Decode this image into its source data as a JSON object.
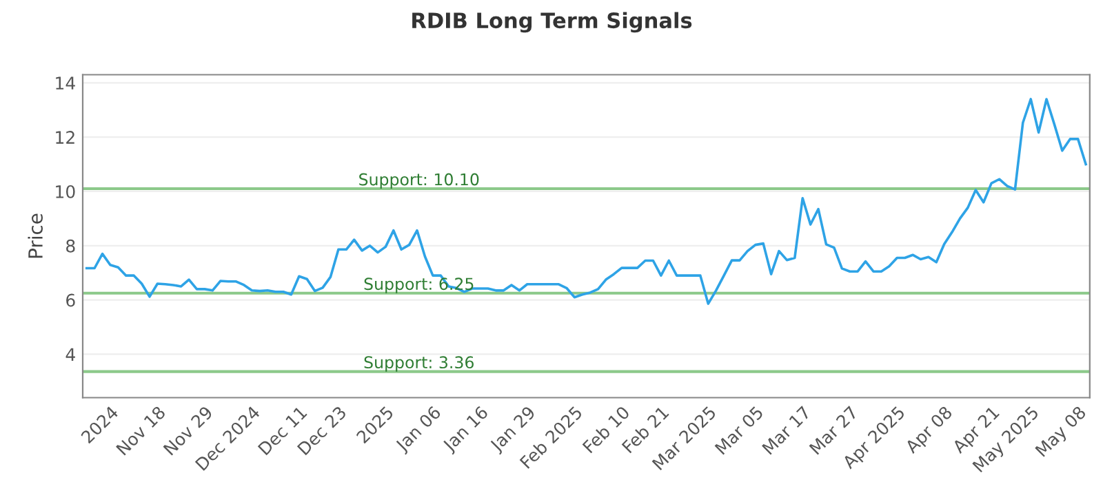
{
  "chart_data": {
    "type": "line",
    "title": "RDIB Long Term Signals",
    "ylabel": "Price",
    "categories": [
      null,
      null,
      null,
      "2024",
      null,
      null,
      null,
      null,
      null,
      "Nov 18",
      null,
      null,
      null,
      null,
      null,
      "Nov 29",
      null,
      null,
      null,
      null,
      null,
      "Dec 2024",
      null,
      null,
      null,
      null,
      null,
      "Dec 11",
      null,
      null,
      null,
      null,
      "Dec 23",
      null,
      null,
      null,
      null,
      null,
      "2025",
      null,
      null,
      null,
      null,
      null,
      "Jan 06",
      null,
      null,
      null,
      null,
      null,
      "Jan 16",
      null,
      null,
      null,
      null,
      null,
      "Jan 29",
      null,
      null,
      null,
      null,
      null,
      "Feb 2025",
      null,
      null,
      null,
      null,
      null,
      "Feb 10",
      null,
      null,
      null,
      null,
      "Feb 21",
      null,
      null,
      null,
      null,
      null,
      "Mar 2025",
      null,
      null,
      null,
      null,
      null,
      "Mar 05",
      null,
      null,
      null,
      null,
      null,
      "Mar 17",
      null,
      null,
      null,
      null,
      null,
      "Mar 27",
      null,
      null,
      null,
      null,
      null,
      "Apr 2025",
      null,
      null,
      null,
      null,
      null,
      "Apr 08",
      null,
      null,
      null,
      null,
      null,
      "Apr 21",
      null,
      null,
      null,
      null,
      "May 2025",
      null,
      null,
      null,
      null,
      null,
      "May 08",
      null
    ],
    "series": [
      {
        "color": "#2ea3e6",
        "values": [
          7.17,
          7.17,
          7.7,
          7.29,
          7.2,
          6.9,
          6.9,
          6.6,
          6.12,
          6.6,
          6.58,
          6.55,
          6.5,
          6.75,
          6.4,
          6.4,
          6.35,
          6.7,
          6.68,
          6.68,
          6.55,
          6.35,
          6.33,
          6.35,
          6.3,
          6.3,
          6.2,
          6.87,
          6.77,
          6.33,
          6.45,
          6.85,
          7.86,
          7.86,
          8.22,
          7.82,
          8.0,
          7.75,
          7.96,
          8.56,
          7.86,
          8.03,
          8.56,
          7.6,
          6.9,
          6.9,
          6.5,
          6.44,
          6.3,
          6.42,
          6.42,
          6.42,
          6.35,
          6.35,
          6.55,
          6.35,
          6.58,
          6.58,
          6.58,
          6.58,
          6.58,
          6.44,
          6.1,
          6.2,
          6.27,
          6.4,
          6.75,
          6.95,
          7.18,
          7.18,
          7.18,
          7.45,
          7.45,
          6.9,
          7.45,
          6.9,
          6.9,
          6.9,
          6.9,
          5.86,
          6.35,
          6.9,
          7.46,
          7.46,
          7.8,
          8.03,
          8.08,
          6.95,
          7.8,
          7.47,
          7.55,
          9.75,
          8.78,
          9.35,
          8.05,
          7.93,
          7.16,
          7.05,
          7.05,
          7.42,
          7.05,
          7.05,
          7.24,
          7.55,
          7.55,
          7.66,
          7.5,
          7.58,
          7.39,
          8.06,
          8.5,
          9.0,
          9.4,
          10.05,
          9.6,
          10.3,
          10.45,
          10.2,
          10.07,
          12.53,
          13.4,
          12.17,
          13.4,
          12.47,
          11.5,
          11.93,
          11.93,
          11.0
        ]
      }
    ],
    "ylim": [
      2.4,
      14.3
    ],
    "yticks": [
      4,
      6,
      8,
      10,
      12,
      14
    ],
    "grid": "y",
    "legend": false,
    "marker": "none",
    "line_style": "solid",
    "ref_lines": [
      {
        "axis": "y",
        "value": 10.1,
        "label": "Support: 10.10",
        "color": "#8cc98a"
      },
      {
        "axis": "y",
        "value": 6.25,
        "label": "Support: 6.25",
        "color": "#8cc98a"
      },
      {
        "axis": "y",
        "value": 3.36,
        "label": "Support: 3.36",
        "color": "#8cc98a"
      }
    ]
  }
}
